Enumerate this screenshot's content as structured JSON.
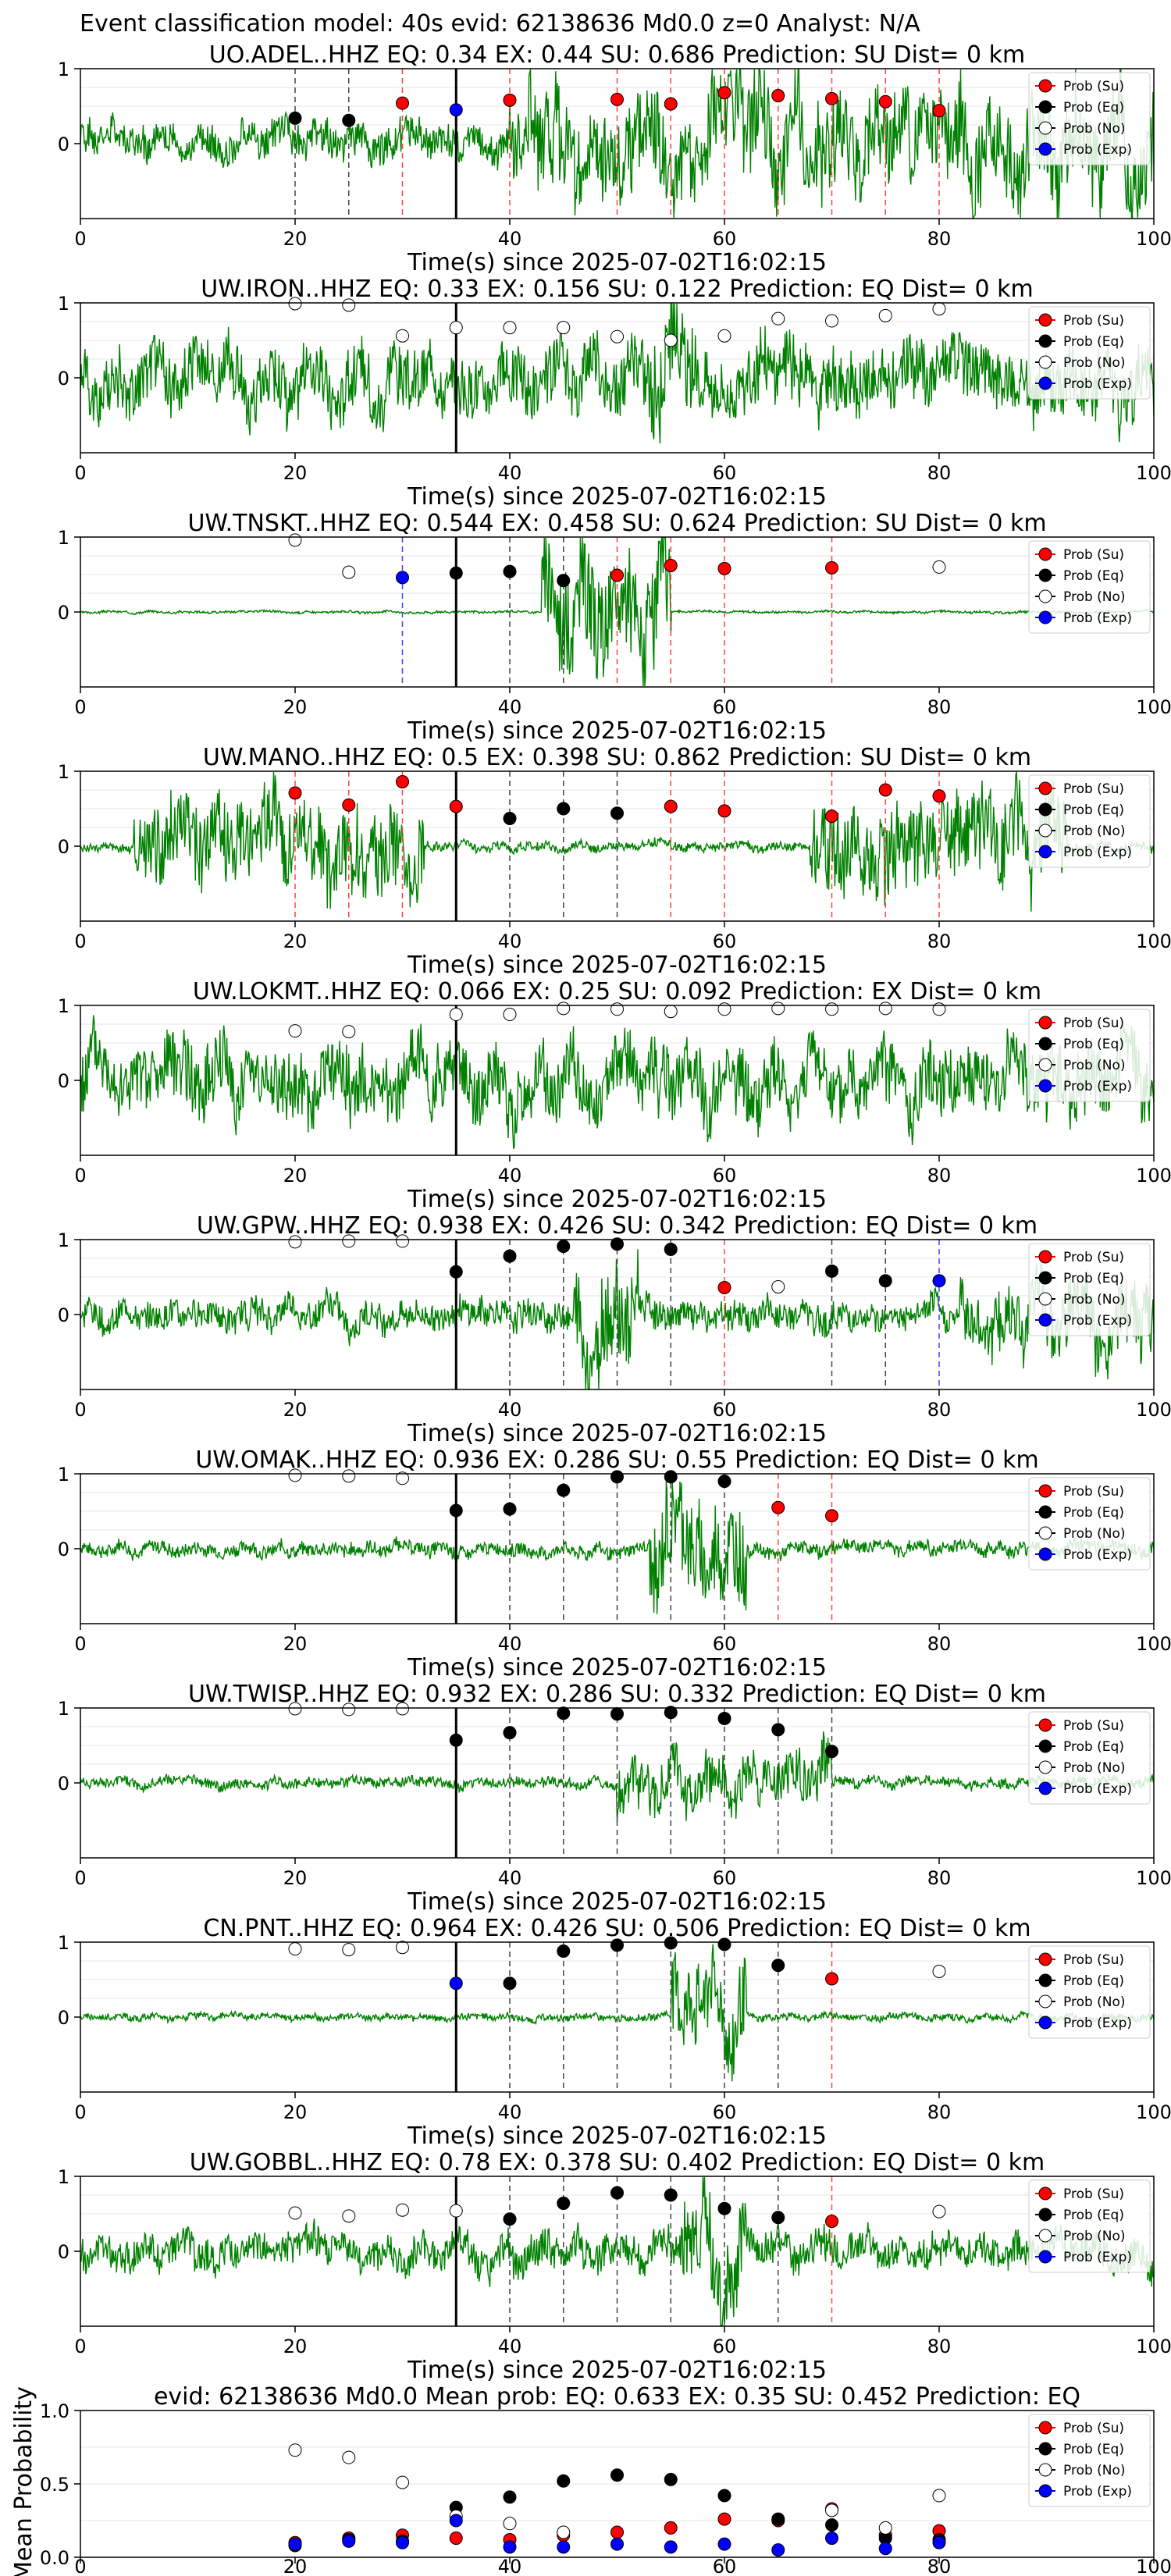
{
  "figure": {
    "suptitle": "Event classification model: 40s evid: 62138636 Md0.0 z=0 Analyst: N/A"
  },
  "legend_labels": [
    "Prob (Su)",
    "Prob (Eq)",
    "Prob (No)",
    "Prob (Exp)"
  ],
  "colors": {
    "waveform": "#008000",
    "su": "#ff0000",
    "eq": "#000000",
    "no": "#ffffff",
    "exp": "#0000ff",
    "su_line": "#ff4444",
    "eq_line": "#444444",
    "exp_line": "#4444ff",
    "origin_line": "#000000"
  },
  "chart_data": [
    {
      "type": "line",
      "title": "UO.ADEL..HHZ   EQ: 0.34  EX: 0.44  SU: 0.686   Prediction: SU    Dist= 0 km",
      "xlabel": "Time(s) since 2025-07-02T16:02:15",
      "xlim": [
        0,
        100
      ],
      "ylim": [
        -1,
        1
      ],
      "xticks": [
        "0",
        "20",
        "40",
        "60",
        "80",
        "100"
      ],
      "yticks": [
        "0",
        "1"
      ],
      "origin_time": 35,
      "waveform": {
        "amplitude": 0.3,
        "spikes": [
          [
            40,
            100,
            0.85
          ]
        ],
        "seed": 1
      },
      "points": [
        {
          "t": 20,
          "p": 0.34,
          "cls": "eq"
        },
        {
          "t": 25,
          "p": 0.31,
          "cls": "eq"
        },
        {
          "t": 30,
          "p": 0.54,
          "cls": "su"
        },
        {
          "t": 35,
          "p": 0.45,
          "cls": "exp"
        },
        {
          "t": 40,
          "p": 0.58,
          "cls": "su"
        },
        {
          "t": 50,
          "p": 0.59,
          "cls": "su"
        },
        {
          "t": 55,
          "p": 0.53,
          "cls": "su"
        },
        {
          "t": 60,
          "p": 0.68,
          "cls": "su"
        },
        {
          "t": 65,
          "p": 0.64,
          "cls": "su"
        },
        {
          "t": 70,
          "p": 0.6,
          "cls": "su"
        },
        {
          "t": 75,
          "p": 0.56,
          "cls": "su"
        },
        {
          "t": 80,
          "p": 0.44,
          "cls": "su"
        }
      ]
    },
    {
      "type": "line",
      "title": "UW.IRON..HHZ   EQ: 0.33  EX: 0.156  SU: 0.122   Prediction: EQ    Dist= 0 km",
      "xlabel": "Time(s) since 2025-07-02T16:02:15",
      "xlim": [
        0,
        100
      ],
      "ylim": [
        -1,
        1
      ],
      "xticks": [
        "0",
        "20",
        "40",
        "60",
        "80",
        "100"
      ],
      "yticks": [
        "0",
        "1"
      ],
      "origin_time": 35,
      "waveform": {
        "amplitude": 0.55,
        "spikes": [
          [
            53,
            57,
            0.9
          ]
        ],
        "seed": 2
      },
      "points": [
        {
          "t": 20,
          "p": 0.99,
          "cls": "no"
        },
        {
          "t": 25,
          "p": 0.97,
          "cls": "no"
        },
        {
          "t": 30,
          "p": 0.56,
          "cls": "no"
        },
        {
          "t": 35,
          "p": 0.67,
          "cls": "no"
        },
        {
          "t": 40,
          "p": 0.67,
          "cls": "no"
        },
        {
          "t": 45,
          "p": 0.67,
          "cls": "no"
        },
        {
          "t": 50,
          "p": 0.55,
          "cls": "no"
        },
        {
          "t": 55,
          "p": 0.5,
          "cls": "no"
        },
        {
          "t": 60,
          "p": 0.56,
          "cls": "no"
        },
        {
          "t": 65,
          "p": 0.79,
          "cls": "no"
        },
        {
          "t": 70,
          "p": 0.76,
          "cls": "no"
        },
        {
          "t": 75,
          "p": 0.83,
          "cls": "no"
        },
        {
          "t": 80,
          "p": 0.92,
          "cls": "no"
        }
      ]
    },
    {
      "type": "line",
      "title": "UW.TNSKT..HHZ   EQ: 0.544  EX: 0.458  SU: 0.624   Prediction: SU    Dist= 0 km",
      "xlabel": "Time(s) since 2025-07-02T16:02:15",
      "xlim": [
        0,
        100
      ],
      "ylim": [
        -1,
        1
      ],
      "xticks": [
        "0",
        "20",
        "40",
        "60",
        "80",
        "100"
      ],
      "yticks": [
        "0",
        "1"
      ],
      "origin_time": 35,
      "waveform": {
        "amplitude": 0.02,
        "spikes": [
          [
            43,
            55,
            0.95
          ]
        ],
        "seed": 3
      },
      "points": [
        {
          "t": 20,
          "p": 0.96,
          "cls": "no"
        },
        {
          "t": 25,
          "p": 0.53,
          "cls": "no"
        },
        {
          "t": 30,
          "p": 0.46,
          "cls": "exp"
        },
        {
          "t": 35,
          "p": 0.52,
          "cls": "eq"
        },
        {
          "t": 40,
          "p": 0.54,
          "cls": "eq"
        },
        {
          "t": 45,
          "p": 0.42,
          "cls": "eq"
        },
        {
          "t": 50,
          "p": 0.49,
          "cls": "su"
        },
        {
          "t": 55,
          "p": 0.62,
          "cls": "su"
        },
        {
          "t": 60,
          "p": 0.58,
          "cls": "su"
        },
        {
          "t": 70,
          "p": 0.59,
          "cls": "su"
        },
        {
          "t": 80,
          "p": 0.6,
          "cls": "no"
        }
      ]
    },
    {
      "type": "line",
      "title": "UW.MANO..HHZ   EQ: 0.5  EX: 0.398  SU: 0.862   Prediction: SU    Dist= 0 km",
      "xlabel": "Time(s) since 2025-07-02T16:02:15",
      "xlim": [
        0,
        100
      ],
      "ylim": [
        -1,
        1
      ],
      "xticks": [
        "0",
        "20",
        "40",
        "60",
        "80",
        "100"
      ],
      "yticks": [
        "0",
        "1"
      ],
      "origin_time": 35,
      "waveform": {
        "amplitude": 0.08,
        "spikes": [
          [
            5,
            32,
            0.7
          ],
          [
            68,
            92,
            0.75
          ]
        ],
        "seed": 4
      },
      "points": [
        {
          "t": 20,
          "p": 0.71,
          "cls": "su"
        },
        {
          "t": 25,
          "p": 0.55,
          "cls": "su"
        },
        {
          "t": 30,
          "p": 0.86,
          "cls": "su"
        },
        {
          "t": 35,
          "p": 0.53,
          "cls": "su"
        },
        {
          "t": 40,
          "p": 0.37,
          "cls": "eq"
        },
        {
          "t": 45,
          "p": 0.5,
          "cls": "eq"
        },
        {
          "t": 50,
          "p": 0.44,
          "cls": "eq"
        },
        {
          "t": 55,
          "p": 0.53,
          "cls": "su"
        },
        {
          "t": 60,
          "p": 0.47,
          "cls": "su"
        },
        {
          "t": 70,
          "p": 0.4,
          "cls": "su"
        },
        {
          "t": 75,
          "p": 0.75,
          "cls": "su"
        },
        {
          "t": 80,
          "p": 0.67,
          "cls": "su"
        }
      ]
    },
    {
      "type": "line",
      "title": "UW.LOKMT..HHZ   EQ: 0.066  EX: 0.25  SU: 0.092   Prediction: EX    Dist= 0 km",
      "xlabel": "Time(s) since 2025-07-02T16:02:15",
      "xlim": [
        0,
        100
      ],
      "ylim": [
        -1,
        1
      ],
      "xticks": [
        "0",
        "20",
        "40",
        "60",
        "80",
        "100"
      ],
      "yticks": [
        "0",
        "1"
      ],
      "origin_time": 35,
      "waveform": {
        "amplitude": 0.6,
        "spikes": [],
        "seed": 5
      },
      "points": [
        {
          "t": 20,
          "p": 0.66,
          "cls": "no"
        },
        {
          "t": 25,
          "p": 0.65,
          "cls": "no"
        },
        {
          "t": 35,
          "p": 0.88,
          "cls": "no"
        },
        {
          "t": 40,
          "p": 0.88,
          "cls": "no"
        },
        {
          "t": 45,
          "p": 0.96,
          "cls": "no"
        },
        {
          "t": 50,
          "p": 0.95,
          "cls": "no"
        },
        {
          "t": 55,
          "p": 0.92,
          "cls": "no"
        },
        {
          "t": 60,
          "p": 0.95,
          "cls": "no"
        },
        {
          "t": 65,
          "p": 0.96,
          "cls": "no"
        },
        {
          "t": 70,
          "p": 0.95,
          "cls": "no"
        },
        {
          "t": 75,
          "p": 0.96,
          "cls": "no"
        },
        {
          "t": 80,
          "p": 0.95,
          "cls": "no"
        }
      ]
    },
    {
      "type": "line",
      "title": "UW.GPW..HHZ   EQ: 0.938  EX: 0.426  SU: 0.342   Prediction: EQ    Dist= 0 km",
      "xlabel": "Time(s) since 2025-07-02T16:02:15",
      "xlim": [
        0,
        100
      ],
      "ylim": [
        -1,
        1
      ],
      "xticks": [
        "0",
        "20",
        "40",
        "60",
        "80",
        "100"
      ],
      "yticks": [
        "0",
        "1"
      ],
      "origin_time": 35,
      "waveform": {
        "amplitude": 0.25,
        "spikes": [
          [
            46,
            52,
            0.9
          ],
          [
            82,
            100,
            0.6
          ]
        ],
        "seed": 6
      },
      "points": [
        {
          "t": 20,
          "p": 0.97,
          "cls": "no"
        },
        {
          "t": 25,
          "p": 0.98,
          "cls": "no"
        },
        {
          "t": 30,
          "p": 0.98,
          "cls": "no"
        },
        {
          "t": 35,
          "p": 0.57,
          "cls": "eq"
        },
        {
          "t": 40,
          "p": 0.78,
          "cls": "eq"
        },
        {
          "t": 45,
          "p": 0.91,
          "cls": "eq"
        },
        {
          "t": 50,
          "p": 0.94,
          "cls": "eq"
        },
        {
          "t": 55,
          "p": 0.87,
          "cls": "eq"
        },
        {
          "t": 60,
          "p": 0.36,
          "cls": "su"
        },
        {
          "t": 65,
          "p": 0.37,
          "cls": "no"
        },
        {
          "t": 70,
          "p": 0.58,
          "cls": "eq"
        },
        {
          "t": 75,
          "p": 0.45,
          "cls": "eq"
        },
        {
          "t": 80,
          "p": 0.45,
          "cls": "exp"
        }
      ]
    },
    {
      "type": "line",
      "title": "UW.OMAK..HHZ   EQ: 0.936  EX: 0.286  SU: 0.55   Prediction: EQ    Dist= 0 km",
      "xlabel": "Time(s) since 2025-07-02T16:02:15",
      "xlim": [
        0,
        100
      ],
      "ylim": [
        -1,
        1
      ],
      "xticks": [
        "0",
        "20",
        "40",
        "60",
        "80",
        "100"
      ],
      "yticks": [
        "0",
        "1"
      ],
      "origin_time": 35,
      "waveform": {
        "amplitude": 0.12,
        "spikes": [
          [
            53,
            62,
            0.85
          ]
        ],
        "seed": 7
      },
      "points": [
        {
          "t": 20,
          "p": 0.98,
          "cls": "no"
        },
        {
          "t": 25,
          "p": 0.97,
          "cls": "no"
        },
        {
          "t": 30,
          "p": 0.94,
          "cls": "no"
        },
        {
          "t": 35,
          "p": 0.51,
          "cls": "eq"
        },
        {
          "t": 40,
          "p": 0.53,
          "cls": "eq"
        },
        {
          "t": 45,
          "p": 0.78,
          "cls": "eq"
        },
        {
          "t": 50,
          "p": 0.96,
          "cls": "eq"
        },
        {
          "t": 55,
          "p": 0.96,
          "cls": "eq"
        },
        {
          "t": 60,
          "p": 0.9,
          "cls": "eq"
        },
        {
          "t": 65,
          "p": 0.55,
          "cls": "su"
        },
        {
          "t": 70,
          "p": 0.44,
          "cls": "su"
        }
      ]
    },
    {
      "type": "line",
      "title": "UW.TWISP..HHZ   EQ: 0.932  EX: 0.286  SU: 0.332   Prediction: EQ    Dist= 0 km",
      "xlabel": "Time(s) since 2025-07-02T16:02:15",
      "xlim": [
        0,
        100
      ],
      "ylim": [
        -1,
        1
      ],
      "xticks": [
        "0",
        "20",
        "40",
        "60",
        "80",
        "100"
      ],
      "yticks": [
        "0",
        "1"
      ],
      "origin_time": 35,
      "waveform": {
        "amplitude": 0.09,
        "spikes": [
          [
            50,
            70,
            0.45
          ]
        ],
        "seed": 8
      },
      "points": [
        {
          "t": 20,
          "p": 0.99,
          "cls": "no"
        },
        {
          "t": 25,
          "p": 0.98,
          "cls": "no"
        },
        {
          "t": 30,
          "p": 0.99,
          "cls": "no"
        },
        {
          "t": 35,
          "p": 0.57,
          "cls": "eq"
        },
        {
          "t": 40,
          "p": 0.67,
          "cls": "eq"
        },
        {
          "t": 45,
          "p": 0.93,
          "cls": "eq"
        },
        {
          "t": 50,
          "p": 0.92,
          "cls": "eq"
        },
        {
          "t": 55,
          "p": 0.94,
          "cls": "eq"
        },
        {
          "t": 60,
          "p": 0.86,
          "cls": "eq"
        },
        {
          "t": 65,
          "p": 0.71,
          "cls": "eq"
        },
        {
          "t": 70,
          "p": 0.42,
          "cls": "eq"
        }
      ]
    },
    {
      "type": "line",
      "title": "CN.PNT..HHZ   EQ: 0.964  EX: 0.426  SU: 0.506   Prediction: EQ    Dist= 0 km",
      "xlabel": "Time(s) since 2025-07-02T16:02:15",
      "xlim": [
        0,
        100
      ],
      "ylim": [
        -1,
        1
      ],
      "xticks": [
        "0",
        "20",
        "40",
        "60",
        "80",
        "100"
      ],
      "yticks": [
        "0",
        "1"
      ],
      "origin_time": 35,
      "waveform": {
        "amplitude": 0.06,
        "spikes": [
          [
            55,
            62,
            0.75
          ]
        ],
        "seed": 9
      },
      "points": [
        {
          "t": 20,
          "p": 0.91,
          "cls": "no"
        },
        {
          "t": 25,
          "p": 0.9,
          "cls": "no"
        },
        {
          "t": 30,
          "p": 0.93,
          "cls": "no"
        },
        {
          "t": 35,
          "p": 0.45,
          "cls": "exp"
        },
        {
          "t": 40,
          "p": 0.45,
          "cls": "eq"
        },
        {
          "t": 45,
          "p": 0.88,
          "cls": "eq"
        },
        {
          "t": 50,
          "p": 0.96,
          "cls": "eq"
        },
        {
          "t": 55,
          "p": 0.99,
          "cls": "eq"
        },
        {
          "t": 60,
          "p": 0.97,
          "cls": "eq"
        },
        {
          "t": 65,
          "p": 0.69,
          "cls": "eq"
        },
        {
          "t": 70,
          "p": 0.51,
          "cls": "su"
        },
        {
          "t": 80,
          "p": 0.61,
          "cls": "no"
        }
      ]
    },
    {
      "type": "line",
      "title": "UW.GOBBL..HHZ   EQ: 0.78  EX: 0.378  SU: 0.402   Prediction: EQ    Dist= 0 km",
      "xlabel": "Time(s) since 2025-07-02T16:02:15",
      "xlim": [
        0,
        100
      ],
      "ylim": [
        -1,
        1
      ],
      "xticks": [
        "0",
        "20",
        "40",
        "60",
        "80",
        "100"
      ],
      "yticks": [
        "0",
        "1"
      ],
      "origin_time": 35,
      "waveform": {
        "amplitude": 0.3,
        "spikes": [
          [
            56,
            62,
            0.8
          ]
        ],
        "seed": 10
      },
      "points": [
        {
          "t": 20,
          "p": 0.51,
          "cls": "no"
        },
        {
          "t": 25,
          "p": 0.47,
          "cls": "no"
        },
        {
          "t": 30,
          "p": 0.55,
          "cls": "no"
        },
        {
          "t": 35,
          "p": 0.54,
          "cls": "no"
        },
        {
          "t": 40,
          "p": 0.43,
          "cls": "eq"
        },
        {
          "t": 45,
          "p": 0.64,
          "cls": "eq"
        },
        {
          "t": 50,
          "p": 0.78,
          "cls": "eq"
        },
        {
          "t": 55,
          "p": 0.75,
          "cls": "eq"
        },
        {
          "t": 60,
          "p": 0.57,
          "cls": "eq"
        },
        {
          "t": 65,
          "p": 0.45,
          "cls": "eq"
        },
        {
          "t": 70,
          "p": 0.4,
          "cls": "su"
        },
        {
          "t": 80,
          "p": 0.53,
          "cls": "no"
        }
      ]
    },
    {
      "type": "scatter",
      "title": "evid: 62138636  Md0.0   Mean prob:   EQ: 0.633  EX: 0.35  SU: 0.452   Prediction: EQ",
      "xlabel": "",
      "ylabel": "Mean Probability",
      "xlim": [
        0,
        100
      ],
      "ylim": [
        0,
        1
      ],
      "xticks": [
        "0",
        "20",
        "40",
        "60",
        "80",
        "100"
      ],
      "yticks": [
        "0.0",
        "0.5",
        "1.0"
      ],
      "x": [
        20,
        25,
        30,
        35,
        40,
        45,
        50,
        55,
        60,
        65,
        70,
        75,
        80
      ],
      "series": [
        {
          "name": "Prob (Su)",
          "cls": "su",
          "values": [
            0.1,
            0.13,
            0.15,
            0.13,
            0.12,
            0.15,
            0.17,
            0.2,
            0.26,
            0.25,
            0.33,
            0.15,
            0.18
          ]
        },
        {
          "name": "Prob (Eq)",
          "cls": "eq",
          "values": [
            0.08,
            0.12,
            0.11,
            0.34,
            0.41,
            0.52,
            0.56,
            0.53,
            0.42,
            0.26,
            0.22,
            0.13,
            0.12
          ]
        },
        {
          "name": "Prob (No)",
          "cls": "no",
          "values": [
            0.73,
            0.68,
            0.51,
            0.28,
            0.23,
            0.17,
            null,
            null,
            null,
            null,
            0.32,
            0.2,
            0.42
          ]
        },
        {
          "name": "Prob (Exp)",
          "cls": "exp",
          "values": [
            0.09,
            0.11,
            0.1,
            0.25,
            0.07,
            0.07,
            0.09,
            0.07,
            0.09,
            0.05,
            0.13,
            0.06,
            0.1
          ]
        }
      ]
    }
  ]
}
